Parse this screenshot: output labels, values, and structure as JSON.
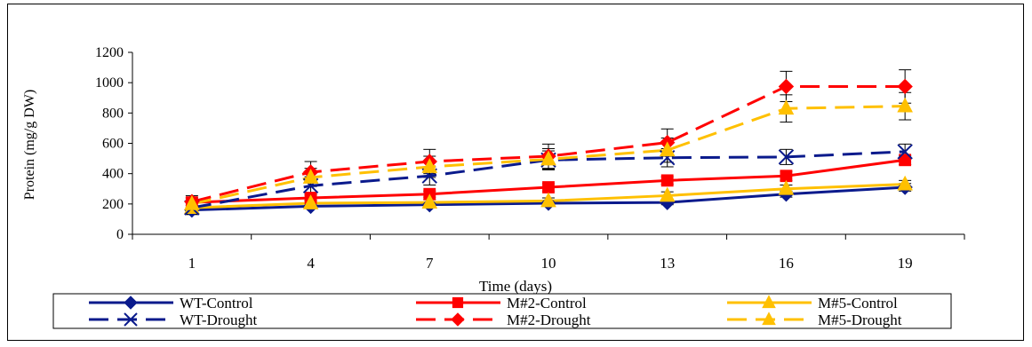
{
  "chart_data": {
    "type": "line",
    "title": "",
    "xlabel": "Time (days)",
    "ylabel": "Protein (mg/g DW)",
    "x": [
      1,
      4,
      7,
      10,
      13,
      16,
      19
    ],
    "ylim": [
      0,
      1200
    ],
    "yticks": [
      0,
      200,
      400,
      600,
      800,
      1000,
      1200
    ],
    "grid": false,
    "legend_position": "bottom",
    "series": [
      {
        "name": "WT-Control",
        "color": "#0a1a8c",
        "dash": "solid",
        "marker": "diamond",
        "values": [
          160,
          185,
          195,
          205,
          210,
          265,
          310
        ],
        "errors": [
          30,
          15,
          15,
          15,
          15,
          20,
          25
        ]
      },
      {
        "name": "M#2-Control",
        "color": "#ff0000",
        "dash": "solid",
        "marker": "square",
        "values": [
          210,
          240,
          265,
          310,
          355,
          385,
          490
        ],
        "errors": [
          30,
          20,
          20,
          25,
          25,
          30,
          30
        ]
      },
      {
        "name": "M#5-Control",
        "color": "#ffc000",
        "dash": "solid",
        "marker": "triangle",
        "values": [
          175,
          205,
          210,
          220,
          255,
          300,
          330
        ],
        "errors": [
          30,
          20,
          20,
          20,
          25,
          25,
          25
        ]
      },
      {
        "name": "WT-Drought",
        "color": "#0a1a8c",
        "dash": "dashed",
        "marker": "x",
        "values": [
          175,
          320,
          385,
          490,
          505,
          510,
          545
        ],
        "errors": [
          40,
          60,
          60,
          60,
          60,
          50,
          50
        ]
      },
      {
        "name": "M#2-Drought",
        "color": "#ff0000",
        "dash": "dashed",
        "marker": "diamond",
        "values": [
          215,
          410,
          480,
          515,
          605,
          975,
          975
        ],
        "errors": [
          40,
          70,
          80,
          80,
          90,
          100,
          110
        ]
      },
      {
        "name": "M#5-Drought",
        "color": "#ffc000",
        "dash": "dashed",
        "marker": "triangle",
        "values": [
          200,
          375,
          445,
          495,
          555,
          830,
          845
        ],
        "errors": [
          40,
          60,
          70,
          70,
          80,
          90,
          90
        ]
      }
    ]
  }
}
